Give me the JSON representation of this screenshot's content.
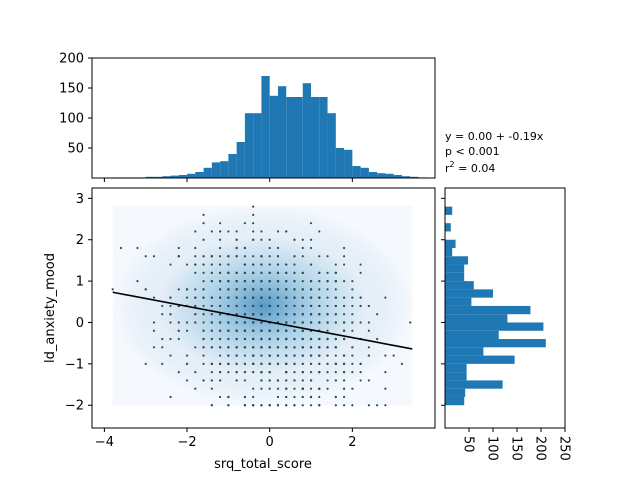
{
  "chart_data": {
    "type": "scatter",
    "xlabel": "srq_total_score",
    "ylabel": "ld_anxiety_mood",
    "grid": false,
    "main": {
      "xlim": [
        -4.3,
        4.0
      ],
      "ylim": [
        -2.55,
        3.25
      ],
      "xticks": [
        -4,
        -2,
        0,
        2
      ],
      "yticks": [
        -2,
        -1,
        0,
        1,
        2,
        3
      ],
      "density_extent": {
        "x": [
          -3.8,
          3.45
        ],
        "y": [
          -2.0,
          2.82
        ]
      },
      "regression_line": {
        "x": [
          -3.8,
          3.45
        ],
        "y": [
          0.73,
          -0.64
        ],
        "color": "#000000"
      },
      "scatter_color": "#2f4f4f"
    },
    "top_histogram": {
      "ylim": [
        0,
        200
      ],
      "yticks": [
        50,
        100,
        150,
        200
      ],
      "bins_start": -3.8,
      "bin_width": 0.2,
      "counts": [
        1,
        1,
        1,
        1,
        2,
        2,
        3,
        4,
        5,
        7,
        10,
        17,
        26,
        28,
        40,
        60,
        108,
        108,
        170,
        137,
        153,
        135,
        135,
        158,
        135,
        135,
        108,
        50,
        47,
        20,
        17,
        10,
        8,
        7,
        5,
        3,
        2,
        1
      ],
      "color": "#1f77b4"
    },
    "right_histogram": {
      "xlim": [
        0,
        250
      ],
      "xticks": [
        50,
        100,
        150,
        200,
        250
      ],
      "bins_start": -2.0,
      "bin_width": 0.2,
      "counts": [
        40,
        42,
        120,
        45,
        45,
        145,
        80,
        210,
        112,
        205,
        130,
        178,
        55,
        100,
        60,
        40,
        40,
        48,
        15,
        22,
        0,
        12,
        0,
        15
      ],
      "color": "#1f77b4"
    },
    "annotation": {
      "line1": "y = 0.00 + -0.19x",
      "line2": "p < 0.001",
      "line3_base": "r",
      "line3_sup": "2",
      "line3_rest": " = 0.04"
    }
  }
}
